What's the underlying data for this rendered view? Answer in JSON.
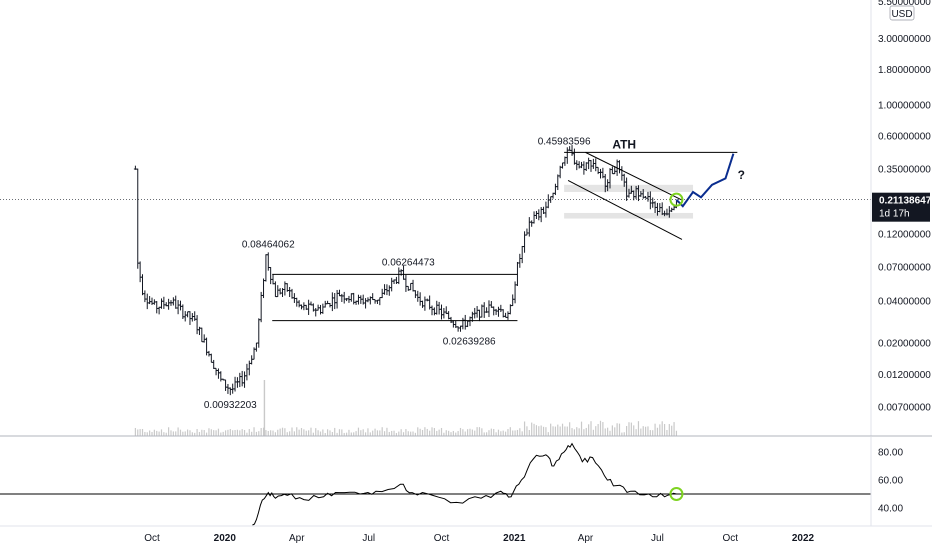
{
  "chart_data": [
    {
      "type": "candlestick",
      "title": "",
      "currency": "USD",
      "y_scale": "log",
      "ylim": [
        0.0065,
        5.5
      ],
      "y_ticks": [
        "5.50000000",
        "3.00000000",
        "1.80000000",
        "1.00000000",
        "0.60000000",
        "0.35000000",
        "0.12000000",
        "0.07000000",
        "0.04000000",
        "0.02000000",
        "0.01200000",
        "0.00700000"
      ],
      "x_ticks": [
        "Oct",
        "2020",
        "Apr",
        "Jul",
        "Oct",
        "2021",
        "Apr",
        "Jul",
        "Oct",
        "2022"
      ],
      "bold_x_ticks": [
        "2020",
        "2021",
        "2022"
      ],
      "current_price": {
        "value": "0.21138647",
        "countdown": "1d 17h"
      },
      "price_path": [
        {
          "t": "2019-09-10",
          "v": 0.35
        },
        {
          "t": "2019-09-12",
          "v": 0.08
        },
        {
          "t": "2019-09-20",
          "v": 0.045
        },
        {
          "t": "2019-10-05",
          "v": 0.036
        },
        {
          "t": "2019-10-25",
          "v": 0.04
        },
        {
          "t": "2019-11-10",
          "v": 0.033
        },
        {
          "t": "2019-11-25",
          "v": 0.028
        },
        {
          "t": "2019-12-10",
          "v": 0.018
        },
        {
          "t": "2019-12-28",
          "v": 0.0105
        },
        {
          "t": "2020-01-10",
          "v": 0.0093
        },
        {
          "t": "2020-01-25",
          "v": 0.0115
        },
        {
          "t": "2020-02-10",
          "v": 0.02
        },
        {
          "t": "2020-02-22",
          "v": 0.0846
        },
        {
          "t": "2020-03-05",
          "v": 0.045
        },
        {
          "t": "2020-03-18",
          "v": 0.05
        },
        {
          "t": "2020-04-05",
          "v": 0.036
        },
        {
          "t": "2020-05-01",
          "v": 0.035
        },
        {
          "t": "2020-05-25",
          "v": 0.045
        },
        {
          "t": "2020-06-20",
          "v": 0.04
        },
        {
          "t": "2020-07-15",
          "v": 0.042
        },
        {
          "t": "2020-08-10",
          "v": 0.0626
        },
        {
          "t": "2020-09-01",
          "v": 0.042
        },
        {
          "t": "2020-10-01",
          "v": 0.033
        },
        {
          "t": "2020-10-25",
          "v": 0.0264
        },
        {
          "t": "2020-11-20",
          "v": 0.034
        },
        {
          "t": "2020-12-10",
          "v": 0.037
        },
        {
          "t": "2020-12-25",
          "v": 0.03
        },
        {
          "t": "2021-01-05",
          "v": 0.07
        },
        {
          "t": "2021-01-20",
          "v": 0.15
        },
        {
          "t": "2021-02-05",
          "v": 0.17
        },
        {
          "t": "2021-02-20",
          "v": 0.23
        },
        {
          "t": "2021-03-01",
          "v": 0.4
        },
        {
          "t": "2021-03-12",
          "v": 0.4598
        },
        {
          "t": "2021-03-25",
          "v": 0.36
        },
        {
          "t": "2021-04-10",
          "v": 0.4
        },
        {
          "t": "2021-04-25",
          "v": 0.28
        },
        {
          "t": "2021-05-10",
          "v": 0.38
        },
        {
          "t": "2021-05-25",
          "v": 0.22
        },
        {
          "t": "2021-06-10",
          "v": 0.25
        },
        {
          "t": "2021-06-25",
          "v": 0.19
        },
        {
          "t": "2021-07-10",
          "v": 0.17
        },
        {
          "t": "2021-07-25",
          "v": 0.2114
        }
      ],
      "projection_path": [
        {
          "t": "2021-07-25",
          "v": 0.2114
        },
        {
          "t": "2021-08-02",
          "v": 0.19
        },
        {
          "t": "2021-08-15",
          "v": 0.24
        },
        {
          "t": "2021-08-25",
          "v": 0.22
        },
        {
          "t": "2021-09-08",
          "v": 0.27
        },
        {
          "t": "2021-09-25",
          "v": 0.3
        },
        {
          "t": "2021-10-05",
          "v": 0.45
        }
      ],
      "levels": [
        {
          "kind": "range",
          "from": "2020-03-01",
          "to": "2021-01-05",
          "v": 0.062
        },
        {
          "kind": "range",
          "from": "2020-03-01",
          "to": "2021-01-05",
          "v": 0.029
        },
        {
          "kind": "ath",
          "from": "2021-03-05",
          "to": "2021-10-10",
          "v": 0.46
        },
        {
          "kind": "wedge",
          "from": "2021-04-01",
          "to": "2021-08-01",
          "v1": 0.46,
          "v2": 0.21
        },
        {
          "kind": "wedge",
          "from": "2021-03-10",
          "to": "2021-08-01",
          "v1": 0.29,
          "v2": 0.11
        }
      ],
      "zones": [
        {
          "from": "2021-03-05",
          "to": "2021-08-15",
          "low": 0.24,
          "high": 0.27
        },
        {
          "from": "2021-03-05",
          "to": "2021-08-15",
          "low": 0.155,
          "high": 0.17
        }
      ],
      "annotations": [
        {
          "text": "0.08464062",
          "t": "2020-02-25",
          "v": 0.0846
        },
        {
          "text": "0.06264473",
          "t": "2020-08-20",
          "v": 0.0626
        },
        {
          "text": "0.02639286",
          "t": "2020-11-05",
          "v": 0.0264
        },
        {
          "text": "0.00932203",
          "t": "2020-01-08",
          "v": 0.0093
        },
        {
          "text": "0.45983596",
          "t": "2021-03-05",
          "v": 0.4598
        },
        {
          "text": "ATH",
          "t": "2021-05-20",
          "v": 0.46
        },
        {
          "text": "?",
          "t": "2021-10-15",
          "v": 0.35
        }
      ],
      "volume_note": "light gray volume bars along the bottom of the price pane"
    },
    {
      "type": "line",
      "title": "",
      "ylim": [
        30,
        90
      ],
      "y_ticks": [
        "80.00",
        "60.00",
        "40.00"
      ],
      "reference_line": 50,
      "series": [
        {
          "values": [
            {
              "t": "2020-02-05",
              "v": 25
            },
            {
              "t": "2020-02-15",
              "v": 42
            },
            {
              "t": "2020-02-25",
              "v": 51
            },
            {
              "t": "2020-03-05",
              "v": 47
            },
            {
              "t": "2020-03-20",
              "v": 49
            },
            {
              "t": "2020-04-10",
              "v": 46
            },
            {
              "t": "2020-05-05",
              "v": 48
            },
            {
              "t": "2020-05-25",
              "v": 51
            },
            {
              "t": "2020-06-20",
              "v": 50
            },
            {
              "t": "2020-07-10",
              "v": 52
            },
            {
              "t": "2020-08-10",
              "v": 57
            },
            {
              "t": "2020-08-25",
              "v": 51
            },
            {
              "t": "2020-09-20",
              "v": 49
            },
            {
              "t": "2020-10-20",
              "v": 44
            },
            {
              "t": "2020-11-20",
              "v": 47
            },
            {
              "t": "2020-12-15",
              "v": 52
            },
            {
              "t": "2020-12-28",
              "v": 48
            },
            {
              "t": "2021-01-10",
              "v": 60
            },
            {
              "t": "2021-01-25",
              "v": 75
            },
            {
              "t": "2021-02-10",
              "v": 78
            },
            {
              "t": "2021-02-20",
              "v": 70
            },
            {
              "t": "2021-03-05",
              "v": 80
            },
            {
              "t": "2021-03-15",
              "v": 86
            },
            {
              "t": "2021-03-28",
              "v": 73
            },
            {
              "t": "2021-04-10",
              "v": 76
            },
            {
              "t": "2021-04-25",
              "v": 63
            },
            {
              "t": "2021-05-10",
              "v": 56
            },
            {
              "t": "2021-05-28",
              "v": 52
            },
            {
              "t": "2021-06-20",
              "v": 50
            },
            {
              "t": "2021-07-10",
              "v": 48
            },
            {
              "t": "2021-07-25",
              "v": 50
            }
          ]
        }
      ],
      "highlight": {
        "t": "2021-07-25",
        "v": 50,
        "color": "#7ed321"
      }
    }
  ],
  "colors": {
    "candle": "#131722",
    "line": "#000000",
    "projection": "#0a2d8f",
    "zone": "#d8d8d8",
    "volume": "#c9c9c9",
    "current_price_bg": "#131722",
    "current_price_text": "#ffffff",
    "circle": "#7ed321",
    "axis_text": "#131722"
  }
}
